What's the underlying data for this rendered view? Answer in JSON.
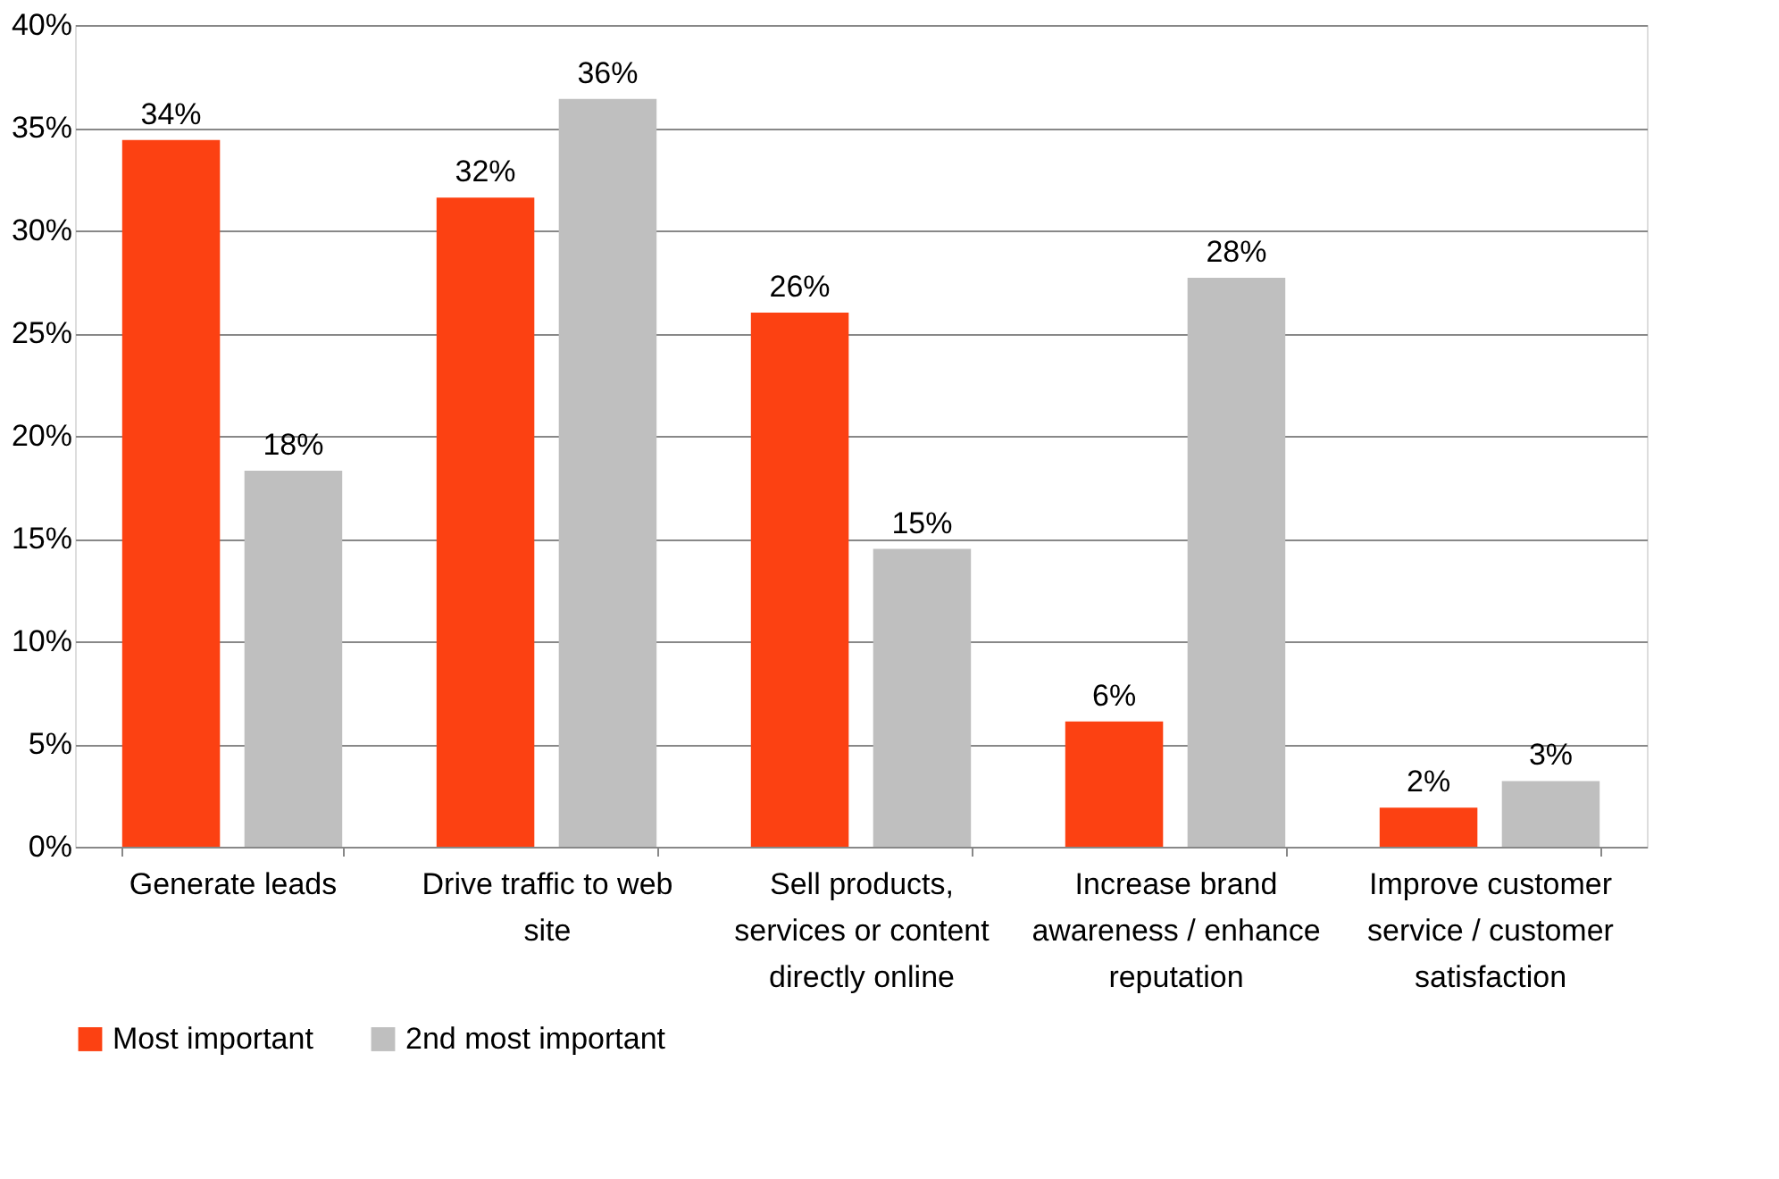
{
  "chart_data": {
    "type": "bar",
    "categories": [
      "Generate leads",
      "Drive traffic to web site",
      "Sell products, services or content directly online",
      "Increase brand awareness / enhance reputation",
      "Improve customer service / customer satisfaction"
    ],
    "series": [
      {
        "name": "Most important",
        "color": "#fc4112",
        "values": [
          34.4,
          31.6,
          26.0,
          6.1,
          1.9
        ],
        "value_labels": [
          "34%",
          "32%",
          "26%",
          "6%",
          "2%"
        ]
      },
      {
        "name": "2nd most important",
        "color": "#bfbfbf",
        "values": [
          18.3,
          36.4,
          14.5,
          27.7,
          3.2
        ],
        "value_labels": [
          "18%",
          "36%",
          "15%",
          "28%",
          "3%"
        ]
      }
    ],
    "ylim": [
      0,
      40
    ],
    "yticks": [
      {
        "value": 0,
        "label": "0%"
      },
      {
        "value": 5,
        "label": "5%"
      },
      {
        "value": 10,
        "label": "10%"
      },
      {
        "value": 15,
        "label": "15%"
      },
      {
        "value": 20,
        "label": "20%"
      },
      {
        "value": 25,
        "label": "25%"
      },
      {
        "value": 30,
        "label": "30%"
      },
      {
        "value": 35,
        "label": "35%"
      },
      {
        "value": 40,
        "label": "40%"
      }
    ],
    "grid": "y",
    "legend": "bottom"
  }
}
